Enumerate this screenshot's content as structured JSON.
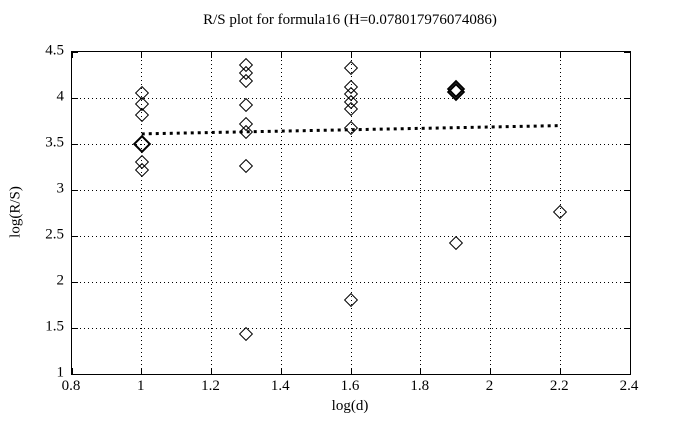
{
  "colors": {
    "background": "#ffffff",
    "foreground": "#000000"
  },
  "chart_data": {
    "type": "scatter",
    "title": "R/S plot for formula16 (H=0.078017976074086)",
    "xlabel": "log(d)",
    "ylabel": "log(R/S)",
    "hurst_exponent_shown_in_title": 0.078017976074086,
    "xlim": [
      0.8,
      2.4
    ],
    "ylim": [
      1,
      4.5
    ],
    "grid": true,
    "legend": "none",
    "marker": "open-diamond",
    "xticks": [
      0.8,
      1,
      1.2,
      1.4,
      1.6,
      1.8,
      2,
      2.2,
      2.4
    ],
    "xtick_labels": [
      "0.8",
      "1",
      "1.2",
      "1.4",
      "1.6",
      "1.8",
      "2",
      "2.2",
      "2.4"
    ],
    "yticks": [
      1,
      1.5,
      2,
      2.5,
      3,
      3.5,
      4,
      4.5
    ],
    "ytick_labels": [
      "1",
      "1.5",
      "2",
      "2.5",
      "3",
      "3.5",
      "4",
      "4.5"
    ],
    "points": [
      {
        "x": 1.0,
        "y": 4.05
      },
      {
        "x": 1.0,
        "y": 3.94
      },
      {
        "x": 1.0,
        "y": 3.82
      },
      {
        "x": 1.0,
        "y": 3.5,
        "bold": true
      },
      {
        "x": 1.0,
        "y": 3.3
      },
      {
        "x": 1.0,
        "y": 3.22
      },
      {
        "x": 1.3,
        "y": 4.36
      },
      {
        "x": 1.3,
        "y": 4.27
      },
      {
        "x": 1.3,
        "y": 4.18
      },
      {
        "x": 1.3,
        "y": 3.92
      },
      {
        "x": 1.3,
        "y": 3.72
      },
      {
        "x": 1.3,
        "y": 3.63
      },
      {
        "x": 1.3,
        "y": 3.26
      },
      {
        "x": 1.3,
        "y": 1.44
      },
      {
        "x": 1.6,
        "y": 4.33
      },
      {
        "x": 1.6,
        "y": 4.12
      },
      {
        "x": 1.6,
        "y": 4.04
      },
      {
        "x": 1.6,
        "y": 3.96
      },
      {
        "x": 1.6,
        "y": 3.88
      },
      {
        "x": 1.6,
        "y": 3.67
      },
      {
        "x": 1.6,
        "y": 1.8
      },
      {
        "x": 1.9,
        "y": 4.1,
        "bold": true
      },
      {
        "x": 1.9,
        "y": 4.07,
        "bold": true
      },
      {
        "x": 1.9,
        "y": 2.42
      },
      {
        "x": 2.2,
        "y": 2.76
      }
    ],
    "trend_line": {
      "style": "bold-dotted",
      "x1": 1.0,
      "y1": 3.61,
      "x2": 2.2,
      "y2": 3.7
    }
  }
}
